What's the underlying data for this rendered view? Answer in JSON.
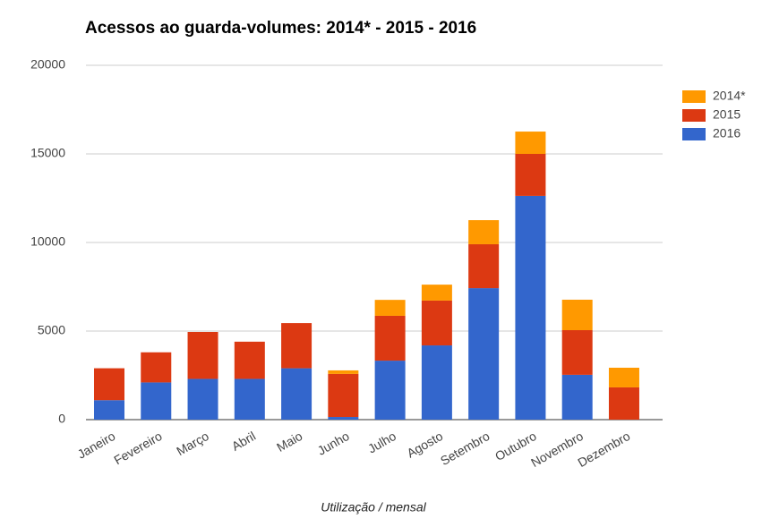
{
  "chart_data": {
    "type": "stacked_bar",
    "title": "Acessos ao guarda-volumes: 2014* - 2015 - 2016",
    "x_label": "Utilização / mensal",
    "categories": [
      "Janeiro",
      "Fevereiro",
      "Março",
      "Abril",
      "Maio",
      "Junho",
      "Julho",
      "Agosto",
      "Setembro",
      "Outubro",
      "Novembro",
      "Dezembro"
    ],
    "series": [
      {
        "name": "2016",
        "color": "#3366cc",
        "values": [
          1100,
          2100,
          2300,
          2300,
          2900,
          150,
          3330,
          4190,
          7420,
          12630,
          2530,
          0
        ]
      },
      {
        "name": "2015",
        "color": "#dc3912",
        "values": [
          1800,
          1700,
          2650,
          2100,
          2550,
          2430,
          2530,
          2530,
          2480,
          2370,
          2520,
          1820
        ]
      },
      {
        "name": "2014*",
        "color": "#ff9900",
        "values": [
          0,
          0,
          0,
          0,
          0,
          200,
          900,
          900,
          1360,
          1260,
          1720,
          1110
        ]
      }
    ],
    "ylim": [
      0,
      20000
    ],
    "yticks": [
      0,
      5000,
      10000,
      15000,
      20000
    ],
    "grid": true,
    "legend": "right"
  }
}
